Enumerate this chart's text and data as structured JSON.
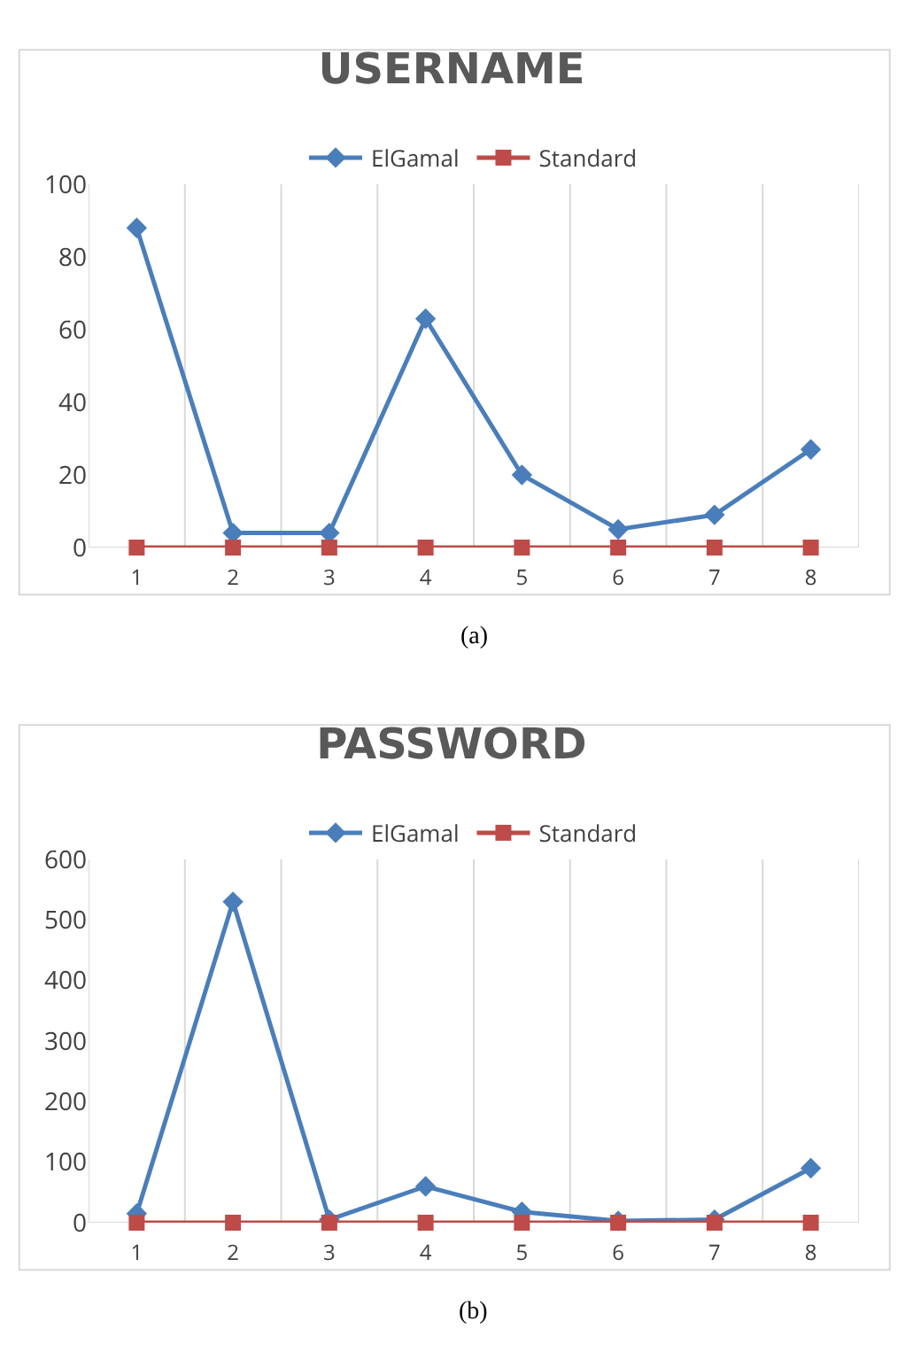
{
  "chart_data": [
    {
      "type": "line",
      "title": "USERNAME",
      "categories": [
        "1",
        "2",
        "3",
        "4",
        "5",
        "6",
        "7",
        "8"
      ],
      "series": [
        {
          "name": "ElGamal",
          "color": "#4a7ebb",
          "marker": "diamond",
          "values": [
            88,
            4,
            4,
            63,
            20,
            5,
            9,
            27
          ]
        },
        {
          "name": "Standard",
          "color": "#be4b48",
          "marker": "square",
          "values": [
            0,
            0,
            0,
            0,
            0,
            0,
            0,
            0
          ]
        }
      ],
      "ylim": [
        0,
        100
      ],
      "yticks": [
        0,
        20,
        40,
        60,
        80,
        100
      ],
      "grid": "x",
      "legend": "top",
      "annotations": [
        "(a)"
      ]
    },
    {
      "type": "line",
      "title": "PASSWORD",
      "categories": [
        "1",
        "2",
        "3",
        "4",
        "5",
        "6",
        "7",
        "8"
      ],
      "series": [
        {
          "name": "ElGamal",
          "color": "#4a7ebb",
          "marker": "diamond",
          "values": [
            15,
            530,
            5,
            60,
            18,
            3,
            5,
            90
          ]
        },
        {
          "name": "Standard",
          "color": "#be4b48",
          "marker": "square",
          "values": [
            0,
            0,
            0,
            0,
            0,
            0,
            0,
            0
          ]
        }
      ],
      "ylim": [
        0,
        600
      ],
      "yticks": [
        0,
        100,
        200,
        300,
        400,
        500,
        600
      ],
      "grid": "x",
      "legend": "top",
      "annotations": [
        "(b)"
      ]
    }
  ]
}
